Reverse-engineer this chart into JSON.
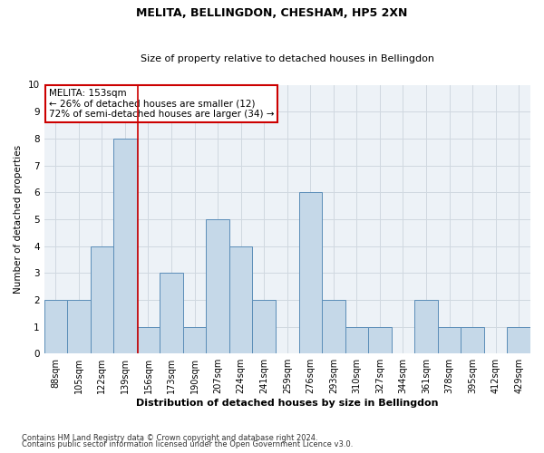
{
  "title": "MELITA, BELLINGDON, CHESHAM, HP5 2XN",
  "subtitle": "Size of property relative to detached houses in Bellingdon",
  "xlabel": "Distribution of detached houses by size in Bellingdon",
  "ylabel": "Number of detached properties",
  "footnote1": "Contains HM Land Registry data © Crown copyright and database right 2024.",
  "footnote2": "Contains public sector information licensed under the Open Government Licence v3.0.",
  "bin_labels": [
    "88sqm",
    "105sqm",
    "122sqm",
    "139sqm",
    "156sqm",
    "173sqm",
    "190sqm",
    "207sqm",
    "224sqm",
    "241sqm",
    "259sqm",
    "276sqm",
    "293sqm",
    "310sqm",
    "327sqm",
    "344sqm",
    "361sqm",
    "378sqm",
    "395sqm",
    "412sqm",
    "429sqm"
  ],
  "bar_heights": [
    2,
    2,
    4,
    8,
    1,
    3,
    1,
    5,
    4,
    2,
    0,
    6,
    2,
    1,
    1,
    0,
    2,
    1,
    1,
    0,
    1
  ],
  "bar_color": "#c5d8e8",
  "bar_edge_color": "#5b8db8",
  "ylim": [
    0,
    10
  ],
  "yticks": [
    0,
    1,
    2,
    3,
    4,
    5,
    6,
    7,
    8,
    9,
    10
  ],
  "property_size_label": "MELITA: 153sqm",
  "annotation_line1": "← 26% of detached houses are smaller (12)",
  "annotation_line2": "72% of semi-detached houses are larger (34) →",
  "vline_color": "#cc0000",
  "vline_bin_index": 3.55,
  "annotation_box_color": "#cc0000",
  "grid_color": "#d0d8e0",
  "background_color": "#edf2f7",
  "title_fontsize": 9,
  "subtitle_fontsize": 8,
  "xlabel_fontsize": 8,
  "ylabel_fontsize": 7.5,
  "tick_fontsize": 7,
  "annot_fontsize": 7.5,
  "footnote_fontsize": 6
}
